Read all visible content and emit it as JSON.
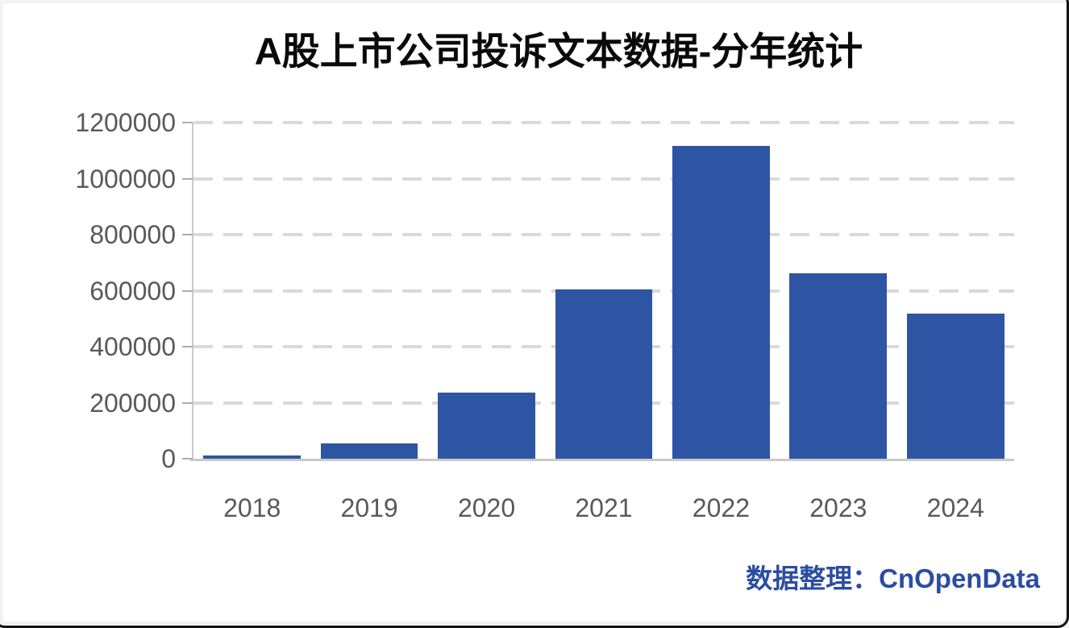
{
  "chart_data": {
    "type": "bar",
    "title": "A股上市公司投诉文本数据-分年统计",
    "categories": [
      "2018",
      "2019",
      "2020",
      "2021",
      "2022",
      "2023",
      "2024"
    ],
    "values": [
      11000,
      55000,
      235000,
      605000,
      1117000,
      662000,
      518000
    ],
    "y_ticks": [
      0,
      200000,
      400000,
      600000,
      800000,
      1000000,
      1200000
    ],
    "ylim": [
      0,
      1200000
    ],
    "xlabel": "",
    "ylabel": "",
    "grid": "horizontal-dashed",
    "legend": "none",
    "bar_color": "#2E55A3",
    "gridline_color": "#d9d9d9",
    "axis_label_color": "#595959",
    "title_color": "#0a0a0a"
  },
  "footer": {
    "credit": "数据整理：CnOpenData",
    "credit_color": "#2B4DA1"
  }
}
